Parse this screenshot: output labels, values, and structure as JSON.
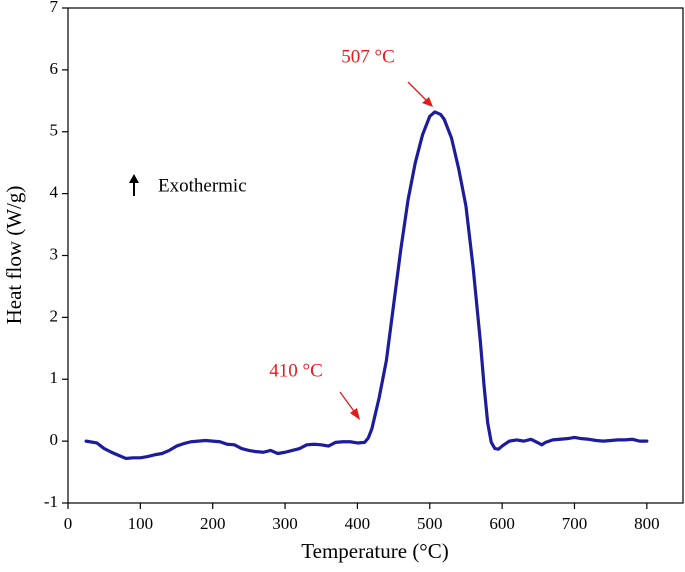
{
  "chart_data": {
    "type": "line",
    "x_label": "Temperature (°C)",
    "y_label": "Heat flow (W/g)",
    "annotations": [
      "507 °C",
      "410 °C",
      "Exothermic"
    ],
    "color": "#1c1c9c",
    "xlim": [
      0,
      850
    ],
    "ylim": [
      -1,
      7
    ],
    "xticks": [
      0,
      100,
      200,
      300,
      400,
      500,
      600,
      700,
      800
    ],
    "yticks": [
      -1,
      0,
      1,
      2,
      3,
      4,
      5,
      6,
      7
    ],
    "x": [
      25,
      40,
      50,
      60,
      70,
      80,
      90,
      100,
      110,
      120,
      130,
      140,
      150,
      160,
      170,
      180,
      190,
      200,
      210,
      220,
      230,
      240,
      250,
      260,
      270,
      280,
      290,
      300,
      310,
      320,
      330,
      340,
      350,
      360,
      370,
      380,
      390,
      400,
      410,
      415,
      420,
      430,
      440,
      450,
      460,
      470,
      480,
      490,
      500,
      507,
      515,
      520,
      530,
      540,
      550,
      560,
      570,
      575,
      580,
      585,
      590,
      595,
      600,
      610,
      620,
      630,
      640,
      650,
      655,
      660,
      670,
      680,
      690,
      700,
      710,
      720,
      730,
      740,
      750,
      760,
      770,
      780,
      790,
      800
    ],
    "values": [
      0.0,
      -0.03,
      -0.12,
      -0.18,
      -0.23,
      -0.28,
      -0.27,
      -0.27,
      -0.25,
      -0.22,
      -0.2,
      -0.15,
      -0.08,
      -0.04,
      -0.01,
      0.0,
      0.01,
      0.0,
      -0.01,
      -0.05,
      -0.06,
      -0.12,
      -0.15,
      -0.17,
      -0.18,
      -0.15,
      -0.2,
      -0.18,
      -0.15,
      -0.12,
      -0.06,
      -0.05,
      -0.06,
      -0.08,
      -0.02,
      -0.01,
      -0.01,
      -0.03,
      -0.02,
      0.05,
      0.2,
      0.7,
      1.3,
      2.2,
      3.1,
      3.9,
      4.5,
      4.95,
      5.25,
      5.32,
      5.28,
      5.2,
      4.9,
      4.4,
      3.8,
      2.8,
      1.6,
      0.9,
      0.3,
      -0.02,
      -0.12,
      -0.13,
      -0.08,
      0.0,
      0.02,
      0.0,
      0.03,
      -0.03,
      -0.06,
      -0.02,
      0.02,
      0.03,
      0.04,
      0.06,
      0.04,
      0.03,
      0.01,
      0.0,
      0.01,
      0.02,
      0.02,
      0.03,
      0.0,
      0.0
    ]
  }
}
